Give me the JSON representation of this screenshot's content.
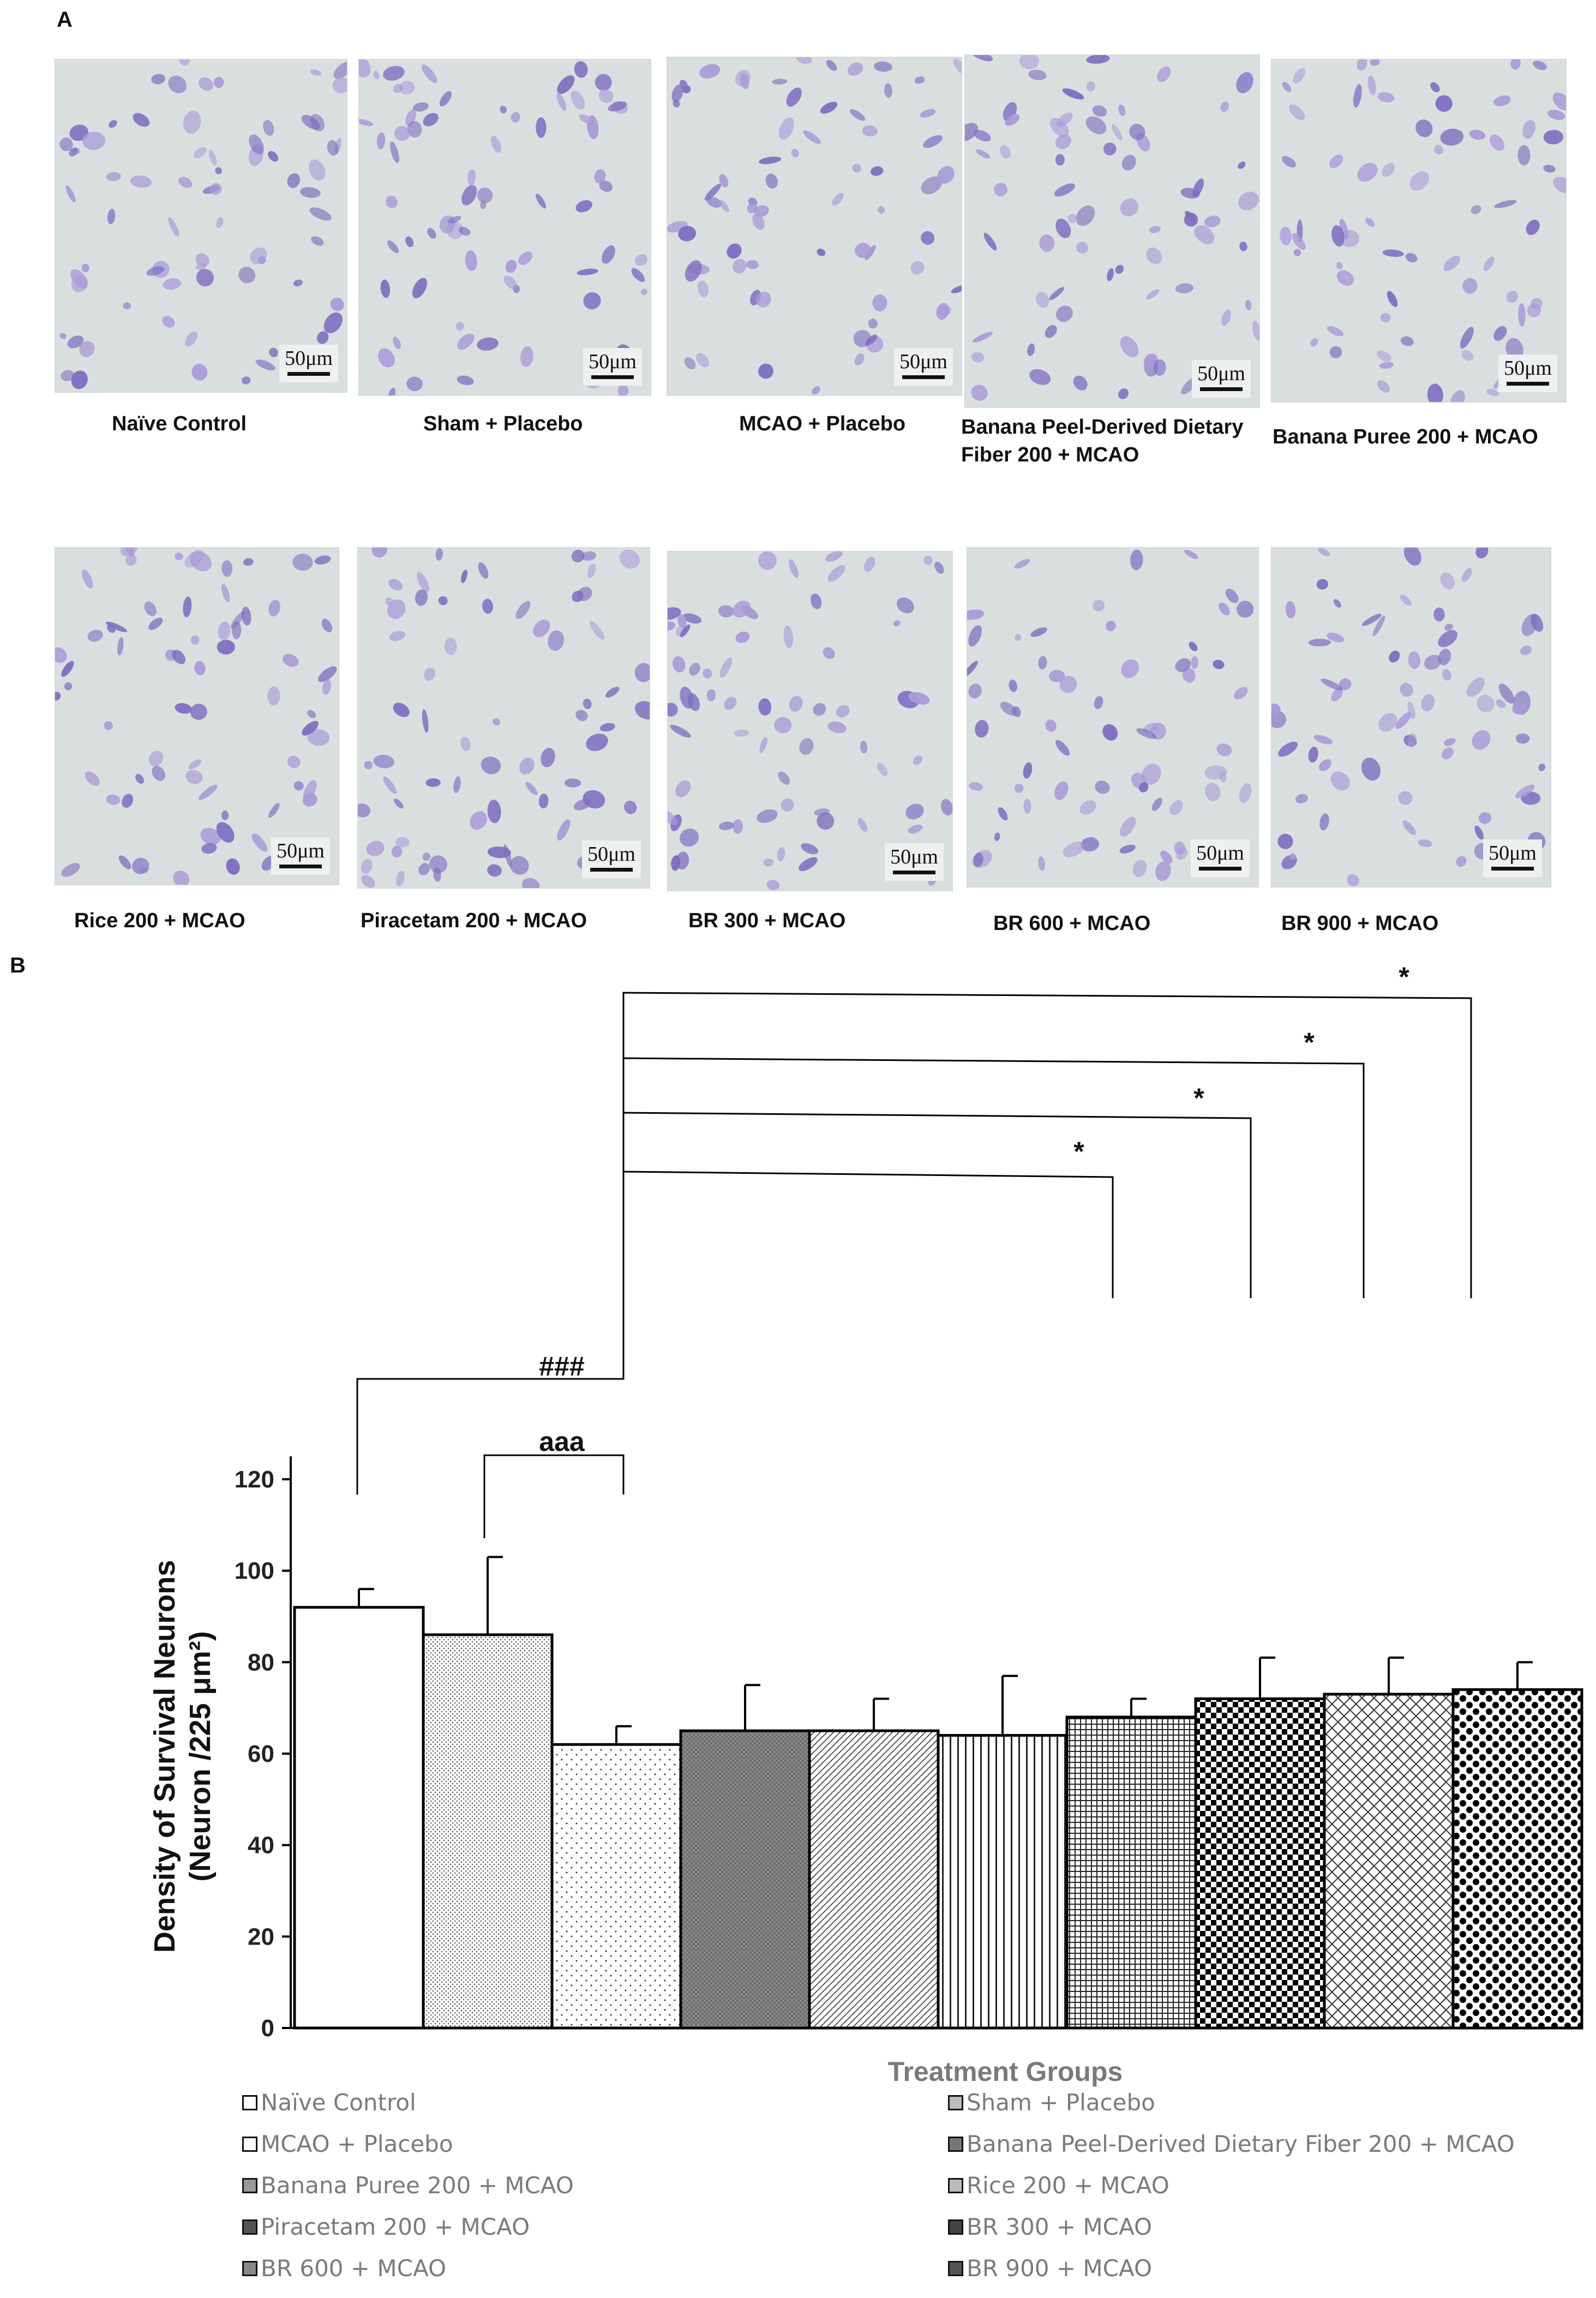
{
  "panel_a": {
    "letter": "A",
    "scale_label": "50μm",
    "images": [
      {
        "caption": "Naïve Control"
      },
      {
        "caption": "Sham + Placebo"
      },
      {
        "caption": "MCAO + Placebo"
      },
      {
        "caption": "Banana Peel-Derived Dietary Fiber 200 + MCAO"
      },
      {
        "caption": "Banana Puree 200 + MCAO"
      },
      {
        "caption": "Rice 200 + MCAO"
      },
      {
        "caption": "Piracetam 200 + MCAO"
      },
      {
        "caption": "BR 300 + MCAO"
      },
      {
        "caption": "BR 600 + MCAO"
      },
      {
        "caption": "BR 900 + MCAO"
      }
    ]
  },
  "panel_b": {
    "letter": "B"
  },
  "chart_data": {
    "type": "bar",
    "xlabel": "Treatment Groups",
    "ylabel_line1": "Density of Survival Neurons",
    "ylabel_line2": "(Neuron /225 μm²)",
    "ylim": [
      0,
      120
    ],
    "yticks": [
      0,
      20,
      40,
      60,
      80,
      100,
      120
    ],
    "categories": [
      "Naïve Control",
      "Sham + Placebo",
      "MCAO + Placebo",
      "Banana Peel-Derived Dietary Fiber 200 + MCAO",
      "Banana Puree 200 + MCAO",
      "Rice 200 + MCAO",
      "Piracetam 200 + MCAO",
      "BR 300 + MCAO",
      "BR 600 + MCAO",
      "BR 900 + MCAO"
    ],
    "values": [
      92,
      86,
      62,
      65,
      65,
      64,
      68,
      72,
      73,
      74
    ],
    "errors": [
      4,
      17,
      4,
      10,
      7,
      13,
      4,
      9,
      8,
      6
    ],
    "patterns": [
      "white",
      "fine-dots",
      "sparse-dots",
      "dark-cross",
      "diagonal",
      "vertical",
      "grid",
      "checker",
      "diamond",
      "big-dots"
    ],
    "legend_layout": "two columns below chart",
    "significance": [
      {
        "label": "###",
        "from": 0,
        "to": 2
      },
      {
        "label": "aaa",
        "from": 1,
        "to": 2
      },
      {
        "label": "*",
        "from": 2,
        "to": 6
      },
      {
        "label": "*",
        "from": 2,
        "to": 7
      },
      {
        "label": "*",
        "from": 2,
        "to": 8
      },
      {
        "label": "*",
        "from": 2,
        "to": 9
      }
    ]
  }
}
